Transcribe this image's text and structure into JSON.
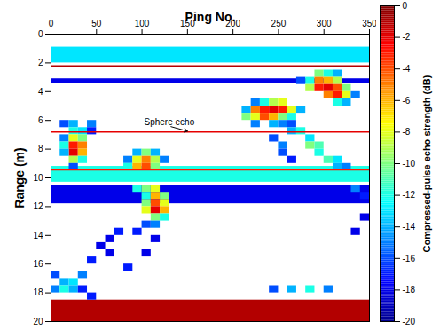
{
  "chart_data": {
    "type": "heatmap",
    "x_label": "Ping No.",
    "y_label": "Range (m)",
    "xlim": [
      0,
      350
    ],
    "ylim": [
      0,
      20
    ],
    "xticks": [
      0,
      50,
      100,
      150,
      200,
      250,
      300,
      350
    ],
    "yticks": [
      0,
      2,
      4,
      6,
      8,
      10,
      12,
      14,
      16,
      18,
      20
    ],
    "cell_width": 10,
    "cell_height": 0.5,
    "bands": [
      {
        "range": [
          0.9,
          2.0
        ],
        "value": -13
      },
      {
        "range": [
          3.1,
          3.4
        ],
        "value": -18
      },
      {
        "range": [
          9.2,
          10.3
        ],
        "value": -12
      },
      {
        "range": [
          10.5,
          11.8
        ],
        "value": -18
      },
      {
        "range": [
          18.5,
          20
        ],
        "value": -1
      }
    ],
    "echo_lines": [
      {
        "range": 2.2,
        "value": -1
      },
      {
        "range": 6.8,
        "value": -2
      },
      {
        "range": 9.45,
        "value": -3
      }
    ],
    "cells": [
      [
        10,
        6.0,
        -16
      ],
      [
        20,
        6.0,
        -14
      ],
      [
        40,
        6.0,
        -15
      ],
      [
        20,
        6.5,
        -12
      ],
      [
        30,
        6.5,
        -13
      ],
      [
        40,
        6.5,
        -17
      ],
      [
        10,
        7.0,
        -15
      ],
      [
        20,
        7.0,
        -8
      ],
      [
        30,
        7.0,
        -10
      ],
      [
        10,
        7.5,
        -12
      ],
      [
        20,
        7.5,
        -3
      ],
      [
        30,
        7.5,
        -5
      ],
      [
        20,
        8.0,
        -2
      ],
      [
        30,
        8.0,
        -6
      ],
      [
        10,
        8.0,
        -14
      ],
      [
        20,
        8.5,
        -9
      ],
      [
        30,
        8.5,
        -12
      ],
      [
        20,
        9.0,
        -16
      ],
      [
        90,
        8.0,
        -14
      ],
      [
        100,
        8.0,
        -10
      ],
      [
        110,
        8.0,
        -14
      ],
      [
        80,
        8.5,
        -15
      ],
      [
        90,
        8.5,
        -8
      ],
      [
        100,
        8.5,
        -5
      ],
      [
        110,
        8.5,
        -9
      ],
      [
        120,
        8.5,
        -15
      ],
      [
        80,
        9.0,
        -12
      ],
      [
        90,
        9.0,
        -6
      ],
      [
        100,
        9.0,
        -4
      ],
      [
        110,
        9.0,
        -10
      ],
      [
        90,
        10.5,
        -12
      ],
      [
        100,
        10.5,
        -10
      ],
      [
        110,
        10.5,
        -8
      ],
      [
        100,
        11.0,
        -12
      ],
      [
        110,
        11.0,
        -6
      ],
      [
        120,
        11.0,
        -10
      ],
      [
        100,
        11.5,
        -10
      ],
      [
        110,
        11.5,
        -4
      ],
      [
        120,
        11.5,
        -8
      ],
      [
        100,
        12.0,
        -8
      ],
      [
        110,
        12.0,
        -2
      ],
      [
        120,
        12.0,
        -6
      ],
      [
        110,
        12.5,
        -10
      ],
      [
        120,
        12.5,
        -12
      ],
      [
        100,
        13.0,
        -16
      ],
      [
        110,
        13.0,
        -15
      ],
      [
        90,
        13.5,
        -17
      ],
      [
        110,
        14.0,
        -18
      ],
      [
        100,
        15.0,
        -18
      ],
      [
        80,
        16.0,
        -17
      ],
      [
        60,
        15.0,
        -18
      ],
      [
        0,
        16.5,
        -16
      ],
      [
        10,
        17.0,
        -14
      ],
      [
        20,
        17.0,
        -13
      ],
      [
        30,
        16.5,
        -15
      ],
      [
        40,
        15.5,
        -17
      ],
      [
        50,
        14.5,
        -18
      ],
      [
        60,
        14.0,
        -18
      ],
      [
        70,
        13.5,
        -17
      ],
      [
        0,
        17.5,
        -15
      ],
      [
        10,
        17.5,
        -12
      ],
      [
        20,
        17.5,
        -14
      ],
      [
        30,
        17.5,
        -17
      ],
      [
        40,
        18.0,
        -17
      ],
      [
        210,
        5.0,
        -14
      ],
      [
        210,
        5.5,
        -10
      ],
      [
        220,
        4.5,
        -15
      ],
      [
        220,
        5.0,
        -5
      ],
      [
        220,
        5.5,
        -8
      ],
      [
        230,
        4.5,
        -12
      ],
      [
        230,
        5.0,
        -3
      ],
      [
        230,
        5.5,
        -4
      ],
      [
        240,
        4.5,
        -9
      ],
      [
        240,
        5.0,
        -2
      ],
      [
        240,
        5.5,
        -6
      ],
      [
        250,
        4.5,
        -8
      ],
      [
        250,
        5.0,
        -3
      ],
      [
        250,
        5.5,
        -10
      ],
      [
        260,
        5.0,
        -8
      ],
      [
        260,
        5.5,
        -12
      ],
      [
        220,
        6.0,
        -15
      ],
      [
        240,
        6.0,
        -14
      ],
      [
        250,
        6.0,
        -15
      ],
      [
        260,
        6.0,
        -16
      ],
      [
        270,
        5.0,
        -14
      ],
      [
        260,
        6.5,
        -14
      ],
      [
        270,
        6.5,
        -12
      ],
      [
        280,
        7.0,
        -13
      ],
      [
        280,
        7.5,
        -10
      ],
      [
        290,
        7.5,
        -11
      ],
      [
        290,
        8.0,
        -12
      ],
      [
        300,
        8.5,
        -11
      ],
      [
        310,
        8.5,
        -13
      ],
      [
        310,
        9.0,
        -14
      ],
      [
        320,
        9.0,
        -15
      ],
      [
        240,
        7.0,
        -16
      ],
      [
        250,
        7.5,
        -15
      ],
      [
        250,
        8.0,
        -16
      ],
      [
        260,
        8.5,
        -17
      ],
      [
        270,
        3.0,
        -16
      ],
      [
        280,
        3.0,
        -12
      ],
      [
        290,
        2.5,
        -10
      ],
      [
        300,
        2.5,
        -12
      ],
      [
        310,
        2.5,
        -14
      ],
      [
        280,
        3.5,
        -9
      ],
      [
        290,
        3.0,
        -5
      ],
      [
        300,
        3.0,
        -6
      ],
      [
        310,
        3.0,
        -9
      ],
      [
        290,
        3.5,
        -3
      ],
      [
        300,
        3.5,
        -2
      ],
      [
        310,
        3.5,
        -4
      ],
      [
        320,
        3.5,
        -10
      ],
      [
        300,
        4.0,
        -5
      ],
      [
        310,
        4.0,
        -3
      ],
      [
        320,
        4.0,
        -8
      ],
      [
        310,
        4.5,
        -12
      ],
      [
        320,
        4.5,
        -14
      ],
      [
        330,
        4.0,
        -15
      ],
      [
        330,
        10.5,
        -15
      ],
      [
        340,
        11.0,
        -17
      ],
      [
        340,
        12.5,
        -18
      ],
      [
        330,
        13.5,
        -18
      ],
      [
        240,
        17.5,
        -16
      ],
      [
        260,
        17.5,
        -14
      ],
      [
        280,
        17.5,
        -12
      ],
      [
        300,
        17.5,
        -15
      ]
    ],
    "colorbar": {
      "label": "Compressed-pulse echo strength (dB)",
      "range": [
        -20,
        0
      ],
      "ticks": [
        0,
        -2,
        -4,
        -6,
        -8,
        -10,
        -12,
        -14,
        -16,
        -18,
        -20
      ]
    },
    "annotations": [
      {
        "text": "Sphere echo",
        "x": 130,
        "y": 6.4,
        "arrow_to": [
          150,
          6.75
        ]
      }
    ]
  }
}
